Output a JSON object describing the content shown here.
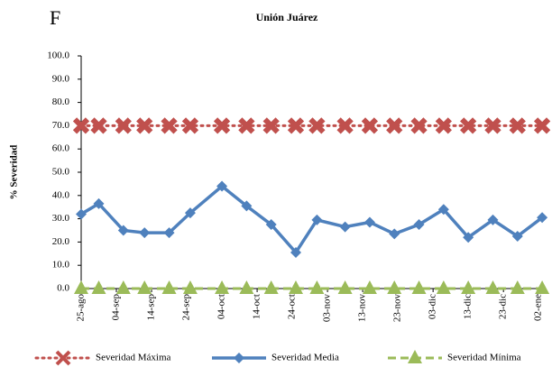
{
  "panel_label": "F",
  "chart_data": {
    "type": "line",
    "title": "Unión Juárez",
    "y_label": "% Severidad",
    "x": [
      0,
      5,
      12,
      18,
      25,
      31,
      40,
      47,
      54,
      61,
      67,
      75,
      82,
      89,
      96,
      103,
      110,
      117,
      124,
      131
    ],
    "xlim": [
      0,
      132
    ],
    "xticks": [
      {
        "value": 0,
        "label": "25-ago"
      },
      {
        "value": 10,
        "label": "04-sep"
      },
      {
        "value": 20,
        "label": "14-sep"
      },
      {
        "value": 30,
        "label": "24-sep"
      },
      {
        "value": 40,
        "label": "04-oct"
      },
      {
        "value": 50,
        "label": "14-oct"
      },
      {
        "value": 60,
        "label": "24-oct"
      },
      {
        "value": 70,
        "label": "03-nov"
      },
      {
        "value": 80,
        "label": "13-nov"
      },
      {
        "value": 90,
        "label": "23-nov"
      },
      {
        "value": 100,
        "label": "03-dic"
      },
      {
        "value": 110,
        "label": "13-dic"
      },
      {
        "value": 120,
        "label": "23-dic"
      },
      {
        "value": 130,
        "label": "02-ene"
      }
    ],
    "ylim": [
      0,
      100
    ],
    "yticks": [
      {
        "value": 0,
        "label": "0.0"
      },
      {
        "value": 10,
        "label": "10.0"
      },
      {
        "value": 20,
        "label": "20.0"
      },
      {
        "value": 30,
        "label": "30.0"
      },
      {
        "value": 40,
        "label": "40.0"
      },
      {
        "value": 50,
        "label": "50.0"
      },
      {
        "value": 60,
        "label": "60.0"
      },
      {
        "value": 70,
        "label": "70.0"
      },
      {
        "value": 80,
        "label": "80.0"
      },
      {
        "value": 90,
        "label": "90.0"
      },
      {
        "value": 100,
        "label": "100.0"
      }
    ],
    "series": [
      {
        "name": "Severidad Máxima",
        "color": "#c0504d",
        "values": [
          70,
          70,
          70,
          70,
          70,
          70,
          70,
          70,
          70,
          70,
          70,
          70,
          70,
          70,
          70,
          70,
          70,
          70,
          70,
          70
        ]
      },
      {
        "name": "Severidad Media",
        "color": "#4f81bd",
        "values": [
          32,
          36.5,
          25,
          24,
          24,
          32.5,
          44,
          35.5,
          27.5,
          15.5,
          29.5,
          26.5,
          28.5,
          23.5,
          27.5,
          34,
          22,
          29.5,
          22.5,
          30.5
        ]
      },
      {
        "name": "Severidad Mínima",
        "color": "#9bbb59",
        "values": [
          0,
          0,
          0,
          0,
          0,
          0,
          0,
          0,
          0,
          0,
          0,
          0,
          0,
          0,
          0,
          0,
          0,
          0,
          0,
          0
        ]
      }
    ]
  }
}
